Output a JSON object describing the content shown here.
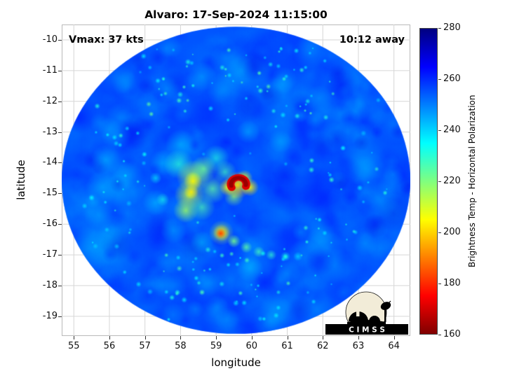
{
  "chart_data": {
    "type": "heatmap",
    "title": "Alvaro: 17-Sep-2024 11:15:00",
    "annotation_left": "Vmax: 37 kts",
    "annotation_right": "10:12 away",
    "xlabel": "longitude",
    "ylabel": "latitude",
    "xlim": [
      54.66,
      64.46
    ],
    "ylim": [
      -19.64,
      -9.5
    ],
    "xticks": [
      55,
      56,
      57,
      58,
      59,
      60,
      61,
      62,
      63,
      64
    ],
    "yticks": [
      -10,
      -11,
      -12,
      -13,
      -14,
      -15,
      -16,
      -17,
      -18,
      -19
    ],
    "grid": true,
    "colorbar": {
      "label": "Brightness Temp - Horizontal Polarization",
      "min": 160,
      "max": 280,
      "ticks": [
        160,
        180,
        200,
        220,
        240,
        260,
        280
      ],
      "colormap": "jet-reversed",
      "stops": [
        {
          "value": 280,
          "color": "#000080"
        },
        {
          "value": 265,
          "color": "#0000ff"
        },
        {
          "value": 235,
          "color": "#00ffff"
        },
        {
          "value": 205,
          "color": "#ffff00"
        },
        {
          "value": 175,
          "color": "#ff0000"
        },
        {
          "value": 160,
          "color": "#800000"
        }
      ]
    },
    "summary": {
      "storm_name": "Alvaro",
      "datetime": "17-Sep-2024 11:15:00",
      "vmax_kts": 37,
      "time_offset": "10:12 away",
      "eye_convection_location": {
        "lon": 59.6,
        "lat": -14.7
      },
      "min_brightness_temp_K": 163,
      "background_brightness_temp_K": 255
    },
    "swath": {
      "center_lon": 59.56,
      "center_lat": -14.57,
      "radius_deg": 4.9,
      "background_value": 255
    },
    "texture": {
      "seed": 42,
      "mottle": {
        "count": 650,
        "vmin": 247,
        "vmax": 265,
        "rmin": 8,
        "rmax": 38,
        "alpha": 0.28
      },
      "cyan_wash": {
        "count": 170,
        "vmin": 237,
        "vmax": 249,
        "rmin": 10,
        "rmax": 34,
        "alpha": 0.25,
        "ring": [
          0.3,
          0.98
        ]
      },
      "dark_patches": {
        "count": 90,
        "vmin": 259,
        "vmax": 270,
        "rmin": 8,
        "rmax": 26,
        "alpha": 0.3
      }
    },
    "features_format": "[lon, lat, radius_deg, brightness_temp_K, opacity]",
    "features": [
      [
        60.9,
        -15.1,
        0.8,
        263,
        0.45
      ],
      [
        61.3,
        -14.0,
        0.7,
        262,
        0.4
      ],
      [
        60.4,
        -16.1,
        0.6,
        262,
        0.4
      ],
      [
        56.9,
        -12.6,
        0.8,
        261,
        0.35
      ],
      [
        58.0,
        -17.6,
        0.7,
        261,
        0.35
      ],
      [
        62.6,
        -15.5,
        0.6,
        263,
        0.35
      ],
      [
        60.2,
        -12.3,
        0.6,
        261,
        0.35
      ],
      [
        59.9,
        -13.3,
        0.5,
        260,
        0.4
      ],
      [
        60.6,
        -14.35,
        0.45,
        261,
        0.45
      ],
      [
        55.8,
        -14.8,
        0.5,
        243,
        0.5
      ],
      [
        55.9,
        -13.9,
        0.45,
        242,
        0.5
      ],
      [
        56.2,
        -13.1,
        0.45,
        244,
        0.45
      ],
      [
        55.7,
        -15.7,
        0.45,
        243,
        0.45
      ],
      [
        56.0,
        -16.4,
        0.4,
        244,
        0.4
      ],
      [
        57.6,
        -11.6,
        0.4,
        243,
        0.45
      ],
      [
        58.6,
        -11.2,
        0.45,
        242,
        0.45
      ],
      [
        59.7,
        -11.0,
        0.45,
        243,
        0.4
      ],
      [
        60.9,
        -11.3,
        0.4,
        244,
        0.4
      ],
      [
        61.9,
        -11.9,
        0.4,
        245,
        0.4
      ],
      [
        62.7,
        -13.0,
        0.4,
        244,
        0.4
      ],
      [
        63.2,
        -14.2,
        0.4,
        245,
        0.35
      ],
      [
        61.9,
        -16.6,
        0.45,
        244,
        0.4
      ],
      [
        61.0,
        -17.6,
        0.4,
        243,
        0.4
      ],
      [
        59.9,
        -18.0,
        0.4,
        244,
        0.4
      ],
      [
        58.8,
        -17.9,
        0.4,
        245,
        0.4
      ],
      [
        57.8,
        -17.2,
        0.4,
        245,
        0.35
      ],
      [
        58.0,
        -13.4,
        0.45,
        240,
        0.5
      ],
      [
        57.5,
        -14.0,
        0.4,
        241,
        0.5
      ],
      [
        57.3,
        -15.3,
        0.4,
        240,
        0.5
      ],
      [
        57.8,
        -16.2,
        0.4,
        241,
        0.45
      ],
      [
        58.6,
        -16.6,
        0.35,
        240,
        0.45
      ],
      [
        59.9,
        -13.0,
        0.35,
        241,
        0.45
      ],
      [
        60.8,
        -13.3,
        0.35,
        243,
        0.4
      ],
      [
        57.95,
        -14.05,
        0.45,
        230,
        0.7
      ],
      [
        59.0,
        -13.85,
        0.4,
        231,
        0.65
      ],
      [
        58.35,
        -14.45,
        0.5,
        216,
        0.85
      ],
      [
        58.25,
        -15.05,
        0.45,
        212,
        0.85
      ],
      [
        58.65,
        -14.2,
        0.4,
        222,
        0.8
      ],
      [
        58.9,
        -14.85,
        0.45,
        224,
        0.75
      ],
      [
        58.15,
        -15.55,
        0.38,
        216,
        0.8
      ],
      [
        58.6,
        -15.45,
        0.4,
        226,
        0.7
      ],
      [
        58.35,
        -14.6,
        0.28,
        204,
        0.9
      ],
      [
        58.3,
        -14.95,
        0.22,
        203,
        0.85
      ],
      [
        59.25,
        -14.3,
        0.35,
        227,
        0.7
      ],
      [
        59.5,
        -15.1,
        0.3,
        217,
        0.7
      ],
      [
        59.6,
        -14.72,
        0.42,
        201,
        0.95
      ],
      [
        59.33,
        -14.8,
        0.26,
        206,
        0.9
      ],
      [
        59.95,
        -14.8,
        0.27,
        204,
        0.9
      ],
      [
        59.8,
        -14.5,
        0.25,
        208,
        0.85
      ],
      [
        59.15,
        -16.28,
        0.38,
        214,
        0.75
      ],
      [
        59.15,
        -16.28,
        0.26,
        200,
        0.9
      ],
      [
        59.13,
        -16.3,
        0.15,
        183,
        1.0
      ],
      [
        59.5,
        -16.55,
        0.2,
        221,
        0.85
      ],
      [
        59.85,
        -16.75,
        0.18,
        224,
        0.8
      ],
      [
        60.2,
        -16.9,
        0.17,
        227,
        0.75
      ],
      [
        60.55,
        -17.0,
        0.16,
        229,
        0.7
      ],
      [
        60.95,
        -17.05,
        0.15,
        233,
        0.7
      ],
      [
        61.3,
        -17.05,
        0.14,
        237,
        0.65
      ],
      [
        57.5,
        -15.2,
        0.2,
        232,
        0.6
      ],
      [
        57.3,
        -14.5,
        0.18,
        234,
        0.6
      ]
    ],
    "arcs_format": "eye convective crescent: {lon,lat,r(deg),a0,a1(deg),value K,width px}",
    "arcs": [
      {
        "lon": 59.63,
        "lat": -14.7,
        "r": 0.22,
        "a0": 150,
        "a1": 380,
        "v": 171,
        "w": 11
      },
      {
        "lon": 59.63,
        "lat": -14.7,
        "r": 0.21,
        "a0": 165,
        "a1": 368,
        "v": 163,
        "w": 6
      }
    ],
    "speckle_clusters": [
      {
        "lon": [
          56.8,
          62.3
        ],
        "lat": [
          -12.6,
          -10.2
        ],
        "count": 60,
        "vmin": 224,
        "vmax": 240
      },
      {
        "lon": [
          57.5,
          62.5
        ],
        "lat": [
          -18.6,
          -16.8
        ],
        "count": 45,
        "vmin": 226,
        "vmax": 240
      },
      {
        "lon": [
          55.2,
          57.0
        ],
        "lat": [
          -16.8,
          -13.0
        ],
        "count": 25,
        "vmin": 228,
        "vmax": 242
      },
      {
        "lon": [
          61.5,
          63.8
        ],
        "lat": [
          -16.5,
          -13.5
        ],
        "count": 22,
        "vmin": 228,
        "vmax": 242
      },
      {
        "lon": [
          55.3,
          63.9
        ],
        "lat": [
          -19.2,
          -10.0
        ],
        "count": 40,
        "vmin": 230,
        "vmax": 244
      }
    ]
  },
  "logo": {
    "banner_text": "C I M S S"
  }
}
